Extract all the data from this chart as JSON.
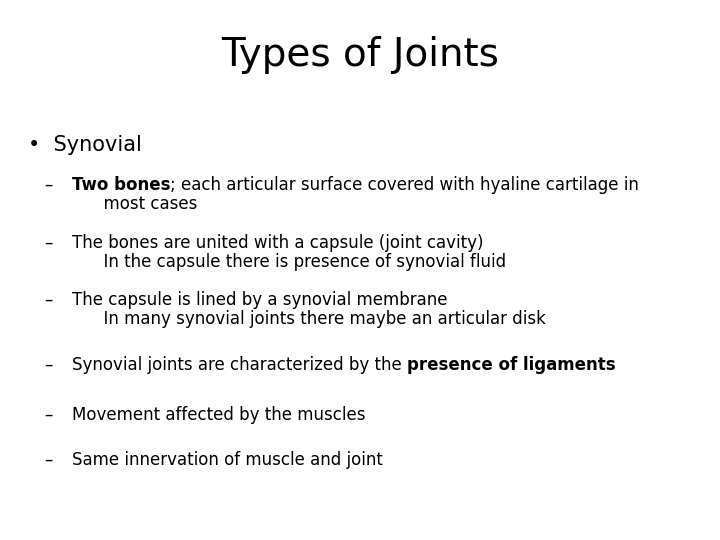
{
  "title": "Types of Joints",
  "background_color": "#ffffff",
  "text_color": "#000000",
  "title_fontsize": 28,
  "body_fontsize": 12,
  "bullet_fontsize": 15,
  "bullet_text": "•  Synovial",
  "items": [
    {
      "prefix": "–  ",
      "line1_parts": [
        {
          "text": "Two bones",
          "bold": true
        },
        {
          "text": "; each articular surface covered with hyaline cartilage in",
          "bold": false
        }
      ],
      "line2": "      most cases",
      "two_lines": true
    },
    {
      "prefix": "–  ",
      "line1_parts": [
        {
          "text": "The bones are united with a capsule (joint cavity)",
          "bold": false
        }
      ],
      "line2": "      In the capsule there is presence of synovial fluid",
      "two_lines": true
    },
    {
      "prefix": "–  ",
      "line1_parts": [
        {
          "text": "The capsule is lined by a synovial membrane",
          "bold": false
        }
      ],
      "line2": "      In many synovial joints there maybe an articular disk",
      "two_lines": true
    },
    {
      "prefix": "–  ",
      "line1_parts": [
        {
          "text": "Synovial joints are characterized by the ",
          "bold": false
        },
        {
          "text": "presence of ligaments",
          "bold": true
        }
      ],
      "two_lines": false
    },
    {
      "prefix": "–  ",
      "line1_parts": [
        {
          "text": "Movement affected by the muscles",
          "bold": false
        }
      ],
      "two_lines": false
    },
    {
      "prefix": "–  ",
      "line1_parts": [
        {
          "text": "Same innervation of muscle and joint",
          "bold": false
        }
      ],
      "two_lines": false
    }
  ]
}
